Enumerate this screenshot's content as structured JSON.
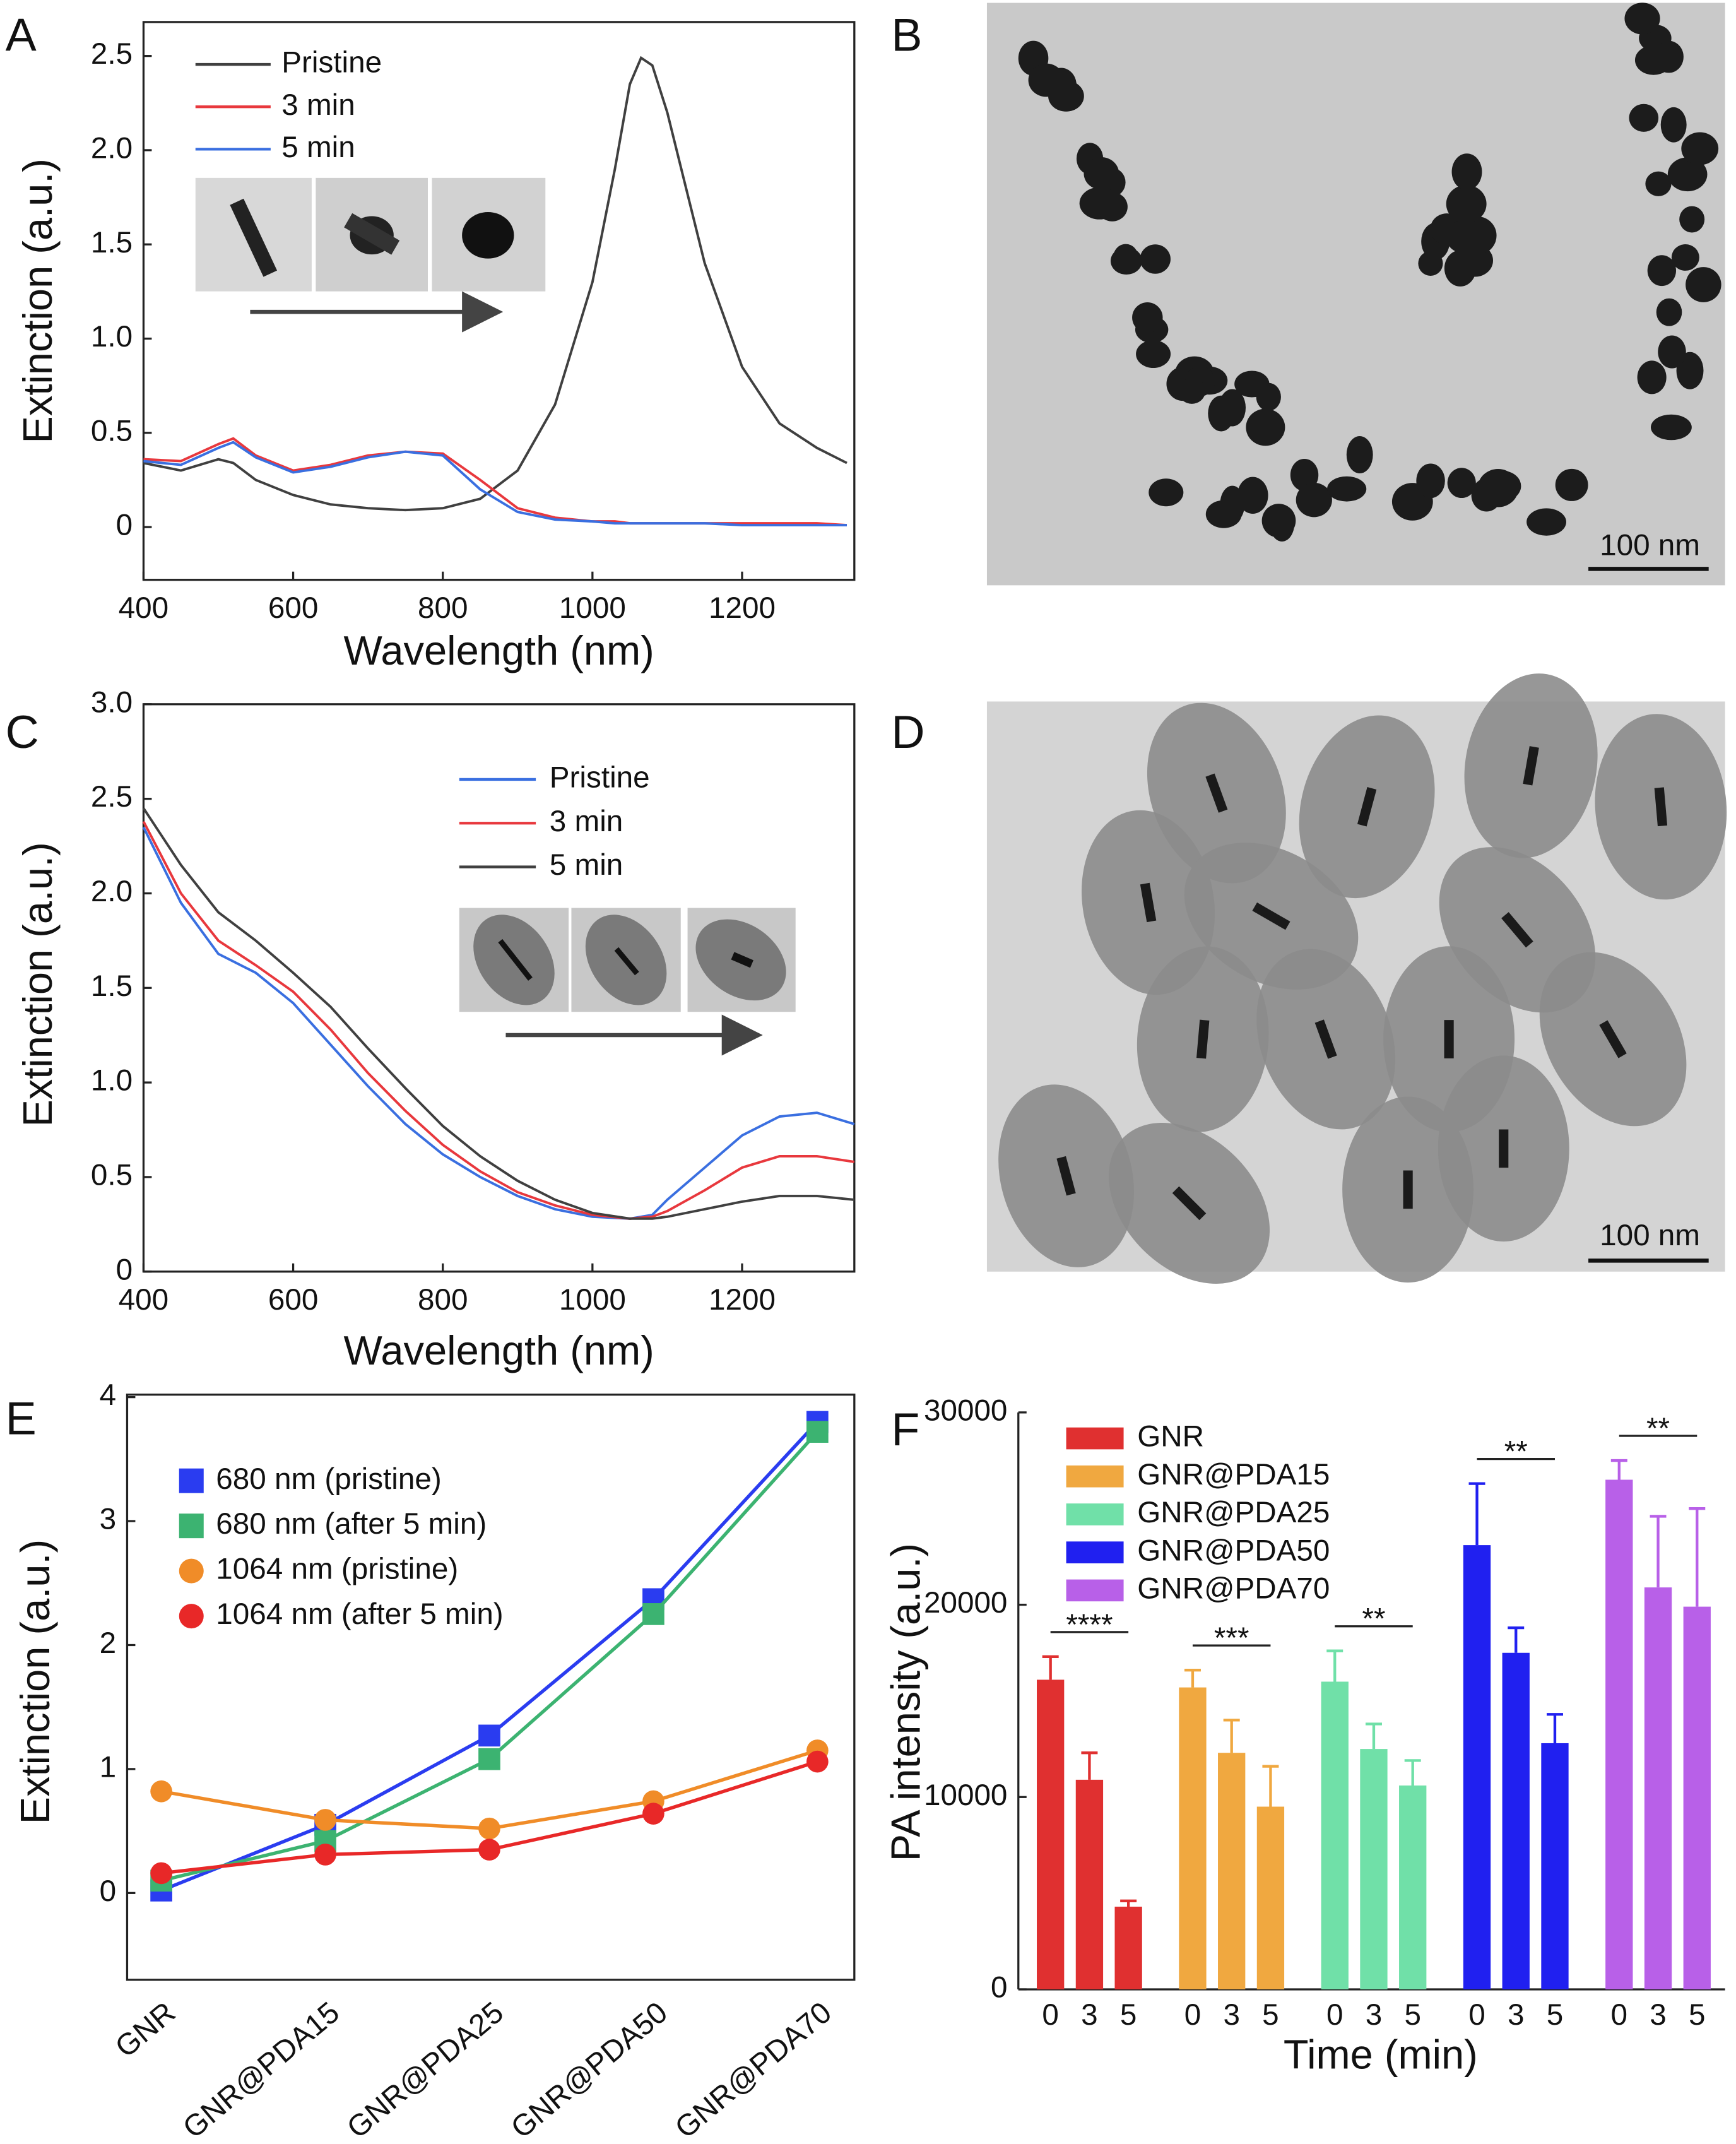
{
  "chart_data": [
    {
      "type": "line",
      "panel": "A",
      "xlabel": "Wavelength (nm)",
      "ylabel": "Extinction (a.u.)",
      "x": [
        400,
        450,
        500,
        520,
        550,
        600,
        650,
        700,
        750,
        800,
        850,
        900,
        950,
        1000,
        1030,
        1050,
        1065,
        1080,
        1100,
        1150,
        1200,
        1250,
        1300,
        1340
      ],
      "series": [
        {
          "name": "Pristine",
          "color": "#404040",
          "values": [
            0.34,
            0.3,
            0.36,
            0.34,
            0.25,
            0.17,
            0.12,
            0.1,
            0.09,
            0.1,
            0.15,
            0.3,
            0.65,
            1.3,
            1.9,
            2.35,
            2.49,
            2.45,
            2.2,
            1.4,
            0.85,
            0.55,
            0.42,
            0.34
          ]
        },
        {
          "name": "3 min",
          "color": "#e8383d",
          "values": [
            0.36,
            0.35,
            0.44,
            0.47,
            0.38,
            0.3,
            0.33,
            0.38,
            0.4,
            0.39,
            0.25,
            0.1,
            0.05,
            0.03,
            0.03,
            0.02,
            0.02,
            0.02,
            0.02,
            0.02,
            0.02,
            0.02,
            0.02,
            0.01
          ]
        },
        {
          "name": "5 min",
          "color": "#3a6fe0",
          "values": [
            0.35,
            0.33,
            0.42,
            0.45,
            0.37,
            0.29,
            0.32,
            0.37,
            0.4,
            0.38,
            0.2,
            0.08,
            0.04,
            0.03,
            0.02,
            0.02,
            0.02,
            0.02,
            0.02,
            0.02,
            0.01,
            0.01,
            0.01,
            0.01
          ]
        }
      ],
      "xlim": [
        400,
        1350
      ],
      "ylim": [
        -0.28,
        2.68
      ],
      "xticks": [
        400,
        600,
        800,
        1000,
        1200
      ],
      "yticks": [
        0,
        0.5,
        {
          "value": 1,
          "label": "1.0"
        },
        1.5,
        {
          "value": 2,
          "label": "2.0"
        },
        2.5
      ]
    },
    {
      "type": "line",
      "panel": "C",
      "xlabel": "Wavelength (nm)",
      "ylabel": "Extinction (a.u.)",
      "x": [
        400,
        450,
        500,
        550,
        600,
        650,
        700,
        750,
        800,
        850,
        900,
        950,
        1000,
        1050,
        1080,
        1100,
        1150,
        1200,
        1250,
        1300,
        1350
      ],
      "series": [
        {
          "name": "Pristine",
          "color": "#3a6fe0",
          "values": [
            2.35,
            1.95,
            1.68,
            1.58,
            1.42,
            1.2,
            0.98,
            0.78,
            0.62,
            0.5,
            0.4,
            0.33,
            0.29,
            0.28,
            0.3,
            0.38,
            0.55,
            0.72,
            0.82,
            0.84,
            0.78
          ]
        },
        {
          "name": "3 min",
          "color": "#e8383d",
          "values": [
            2.38,
            2.0,
            1.75,
            1.62,
            1.48,
            1.28,
            1.05,
            0.85,
            0.67,
            0.53,
            0.42,
            0.35,
            0.3,
            0.28,
            0.29,
            0.32,
            0.43,
            0.55,
            0.61,
            0.61,
            0.58
          ]
        },
        {
          "name": "5 min",
          "color": "#404040",
          "values": [
            2.45,
            2.15,
            1.9,
            1.75,
            1.58,
            1.4,
            1.18,
            0.97,
            0.77,
            0.61,
            0.48,
            0.38,
            0.31,
            0.28,
            0.28,
            0.29,
            0.33,
            0.37,
            0.4,
            0.4,
            0.38
          ]
        }
      ],
      "xlim": [
        400,
        1350
      ],
      "ylim": [
        0,
        3
      ],
      "xticks": [
        400,
        600,
        800,
        1000,
        1200
      ],
      "yticks": [
        0,
        0.5,
        {
          "value": 1,
          "label": "1.0"
        },
        1.5,
        {
          "value": 2,
          "label": "2.0"
        },
        2.5,
        {
          "value": 3,
          "label": "3.0"
        }
      ]
    },
    {
      "type": "line",
      "panel": "E",
      "ylabel": "Extinction (a.u.)",
      "categories": [
        "GNR",
        "GNR@PDA15",
        "GNR@PDA25",
        "GNR@PDA50",
        "GNR@PDA70"
      ],
      "series": [
        {
          "name": "680 nm (pristine)",
          "color": "#2a3cf0",
          "marker": "square",
          "values": [
            0.02,
            0.55,
            1.27,
            2.37,
            3.8
          ]
        },
        {
          "name": "680 nm (after 5 min)",
          "color": "#3cb371",
          "marker": "square",
          "values": [
            0.1,
            0.42,
            1.08,
            2.25,
            3.72
          ]
        },
        {
          "name": "1064 nm (pristine)",
          "color": "#f08c28",
          "marker": "circle",
          "values": [
            0.82,
            0.59,
            0.52,
            0.74,
            1.15
          ]
        },
        {
          "name": "1064 nm (after 5 min)",
          "color": "#e82828",
          "marker": "circle",
          "values": [
            0.16,
            0.31,
            0.35,
            0.64,
            1.06
          ]
        }
      ],
      "ylim": [
        -0.7,
        4.02
      ],
      "yticks": [
        0,
        1,
        2,
        3,
        4
      ]
    },
    {
      "type": "bar",
      "panel": "F",
      "xlabel": "Time (min)",
      "ylabel": "PA  intensity (a.u.)",
      "categories": [
        0,
        3,
        5
      ],
      "series": [
        {
          "name": "GNR",
          "color": "#e03030",
          "values": [
            16100,
            10900,
            4300
          ],
          "errors": [
            1200,
            1400,
            300
          ],
          "significance": "****"
        },
        {
          "name": "GNR@PDA15",
          "color": "#f0a840",
          "values": [
            15700,
            12300,
            9500
          ],
          "errors": [
            900,
            1700,
            2100
          ],
          "significance": "***"
        },
        {
          "name": "GNR@PDA25",
          "color": "#70e0a8",
          "values": [
            16000,
            12500,
            10600
          ],
          "errors": [
            1600,
            1300,
            1300
          ],
          "significance": "**"
        },
        {
          "name": "GNR@PDA50",
          "color": "#2020f0",
          "values": [
            23100,
            17500,
            12800
          ],
          "errors": [
            3200,
            1300,
            1500
          ],
          "significance": "**"
        },
        {
          "name": "GNR@PDA70",
          "color": "#b860e8",
          "values": [
            26500,
            20900,
            19900
          ],
          "errors": [
            1000,
            3700,
            5100
          ],
          "significance": "**"
        }
      ],
      "ylim": [
        0,
        30000
      ],
      "yticks": [
        0,
        10000,
        20000,
        30000
      ]
    }
  ],
  "micrographs": [
    {
      "panel": "B",
      "scale_bar": "100 nm"
    },
    {
      "panel": "D",
      "scale_bar": "100 nm"
    }
  ]
}
